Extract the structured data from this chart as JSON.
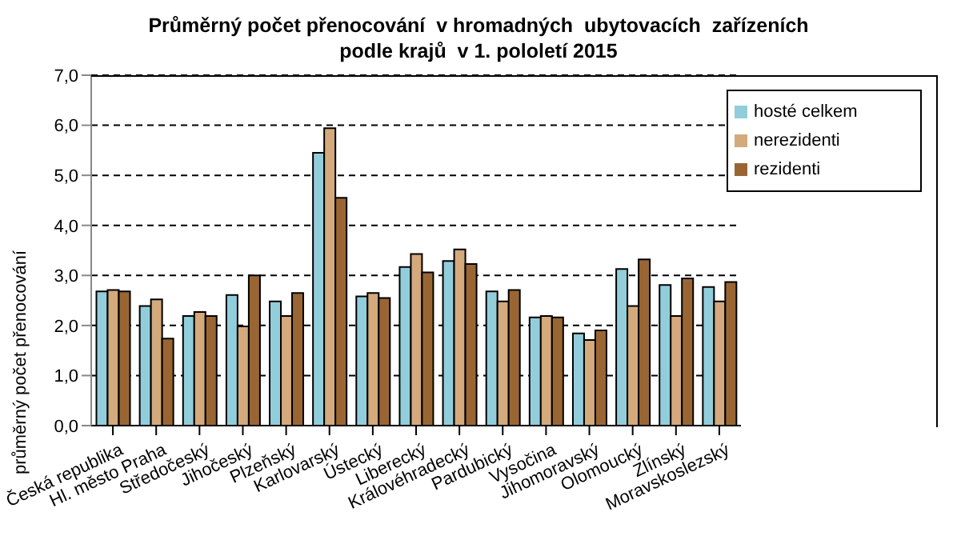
{
  "chart_data": {
    "type": "bar",
    "title": "Průměrný počet přenocování  v hromadných  ubytovacích  zařízeních\npodle krajů  v 1. pololetí 2015",
    "ylabel": "průměrný počet přenocování",
    "categories": [
      "Česká republika",
      "Hl. město Praha",
      "Středočeský",
      "Jihočeský",
      "Plzeňský",
      "Karlovarský",
      "Ústecký",
      "Liberecký",
      "Královéhradecký",
      "Pardubický",
      "Vysočina",
      "Jihomoravský",
      "Olomoucký",
      "Zlínský",
      "Moravskoslezský"
    ],
    "series": [
      {
        "name": "hosté celkem",
        "color": "#92cddc",
        "values": [
          2.68,
          2.39,
          2.19,
          2.61,
          2.48,
          5.45,
          2.58,
          3.17,
          3.29,
          2.68,
          2.16,
          1.84,
          3.13,
          2.81,
          2.77
        ]
      },
      {
        "name": "nerezidenti",
        "color": "#d4a97c",
        "values": [
          2.71,
          2.52,
          2.27,
          1.98,
          2.19,
          5.94,
          2.65,
          3.43,
          3.52,
          2.48,
          2.19,
          1.71,
          2.39,
          2.19,
          2.48
        ]
      },
      {
        "name": "rezidenti",
        "color": "#996633",
        "values": [
          2.68,
          1.74,
          2.19,
          3.0,
          2.65,
          4.55,
          2.55,
          3.06,
          3.23,
          2.71,
          2.16,
          1.9,
          3.32,
          2.94,
          2.87
        ]
      }
    ],
    "ylim": [
      0,
      7
    ],
    "yticks": [
      {
        "value": 0,
        "label": "0,0"
      },
      {
        "value": 1,
        "label": "1,0"
      },
      {
        "value": 2,
        "label": "2,0"
      },
      {
        "value": 3,
        "label": "3,0"
      },
      {
        "value": 4,
        "label": "4,0"
      },
      {
        "value": 5,
        "label": "5,0"
      },
      {
        "value": 6,
        "label": "6,0"
      },
      {
        "value": 7,
        "label": "7,0"
      }
    ],
    "grid": "y",
    "legend": "top right"
  }
}
